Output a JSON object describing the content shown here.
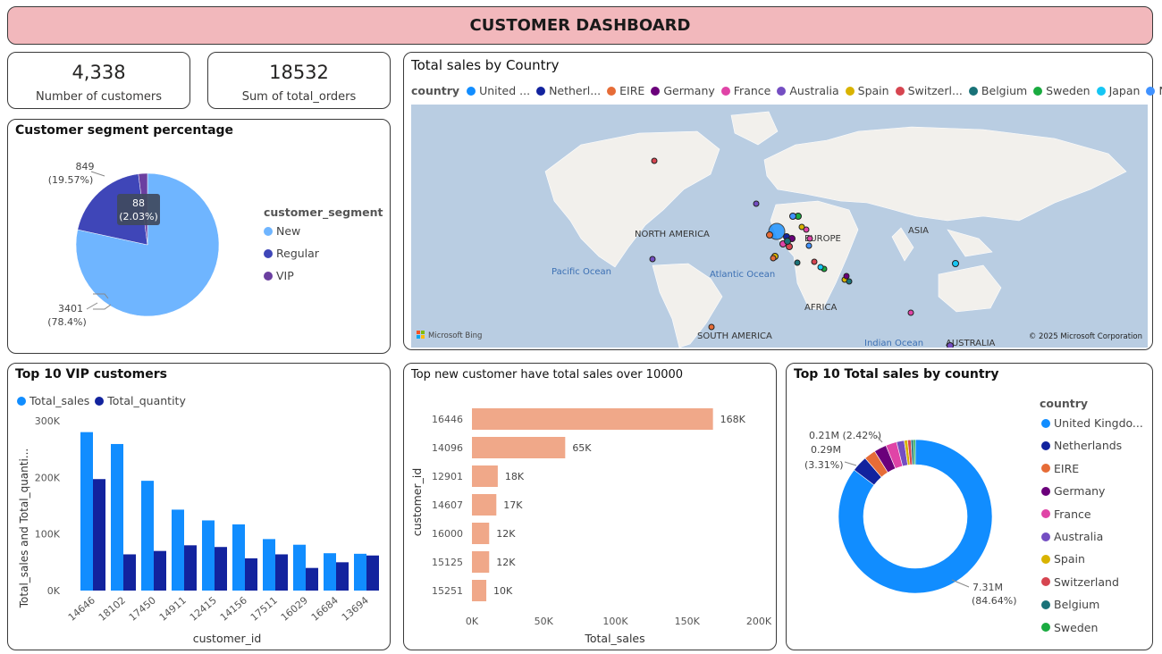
{
  "header": {
    "title": "CUSTOMER DASHBOARD"
  },
  "kpis": {
    "customers": {
      "value": "4,338",
      "label": "Number of customers"
    },
    "orders": {
      "value": "18532",
      "label": "Sum of total_orders"
    }
  },
  "segment_chart": {
    "title": "Customer segment percentage",
    "legend_title": "customer_segment",
    "items": [
      {
        "name": "New",
        "value": 3401,
        "pct": "(78.4%)",
        "color": "#6fb5ff"
      },
      {
        "name": "Regular",
        "value": 849,
        "pct": "(19.57%)",
        "color": "#3f46b8"
      },
      {
        "name": "VIP",
        "value": 88,
        "pct": "(2.03%)",
        "color": "#6b3fa0"
      }
    ],
    "labels": {
      "new_value": "3401",
      "new_pct": "(78.4%)",
      "reg_value": "849",
      "reg_pct": "(19.57%)",
      "vip_value": "88",
      "vip_pct": "(2.03%)"
    }
  },
  "map_card": {
    "title": "Total sales by Country",
    "legend_title": "country",
    "legend": [
      {
        "name": "United ...",
        "color": "#118dff"
      },
      {
        "name": "Netherl...",
        "color": "#12239e"
      },
      {
        "name": "EIRE",
        "color": "#e66c37"
      },
      {
        "name": "Germany",
        "color": "#6b007b"
      },
      {
        "name": "France",
        "color": "#e044a7"
      },
      {
        "name": "Australia",
        "color": "#744ec2"
      },
      {
        "name": "Spain",
        "color": "#d9b300"
      },
      {
        "name": "Switzerl...",
        "color": "#d64550"
      },
      {
        "name": "Belgium",
        "color": "#197278"
      },
      {
        "name": "Sweden",
        "color": "#1aab40"
      },
      {
        "name": "Japan",
        "color": "#15c6f4"
      },
      {
        "name": "Norway",
        "color": "#4092ff"
      }
    ],
    "labels": {
      "north_america": "NORTH AMERICA",
      "europe": "EUROPE",
      "asia": "ASIA",
      "africa": "AFRICA",
      "south_america": "SOUTH AMERICA",
      "australia": "AUSTRALIA",
      "pacific": "Pacific Ocean",
      "atlantic": "Atlantic Ocean",
      "indian": "Indian Ocean"
    },
    "bing": "Microsoft Bing",
    "copyright": "© 2025 Microsoft Corporation"
  },
  "vip_chart": {
    "title": "Top 10 VIP customers",
    "legend": [
      {
        "name": "Total_sales",
        "color": "#118dff"
      },
      {
        "name": "Total_quantity",
        "color": "#12239e"
      }
    ],
    "y_label": "Total_sales and Total_quanti...",
    "x_label": "customer_id"
  },
  "new_chart": {
    "title": "Top new customer have total sales over 10000",
    "x_label": "Total_sales",
    "y_label": "customer_id"
  },
  "donut_card": {
    "title": "Top 10 Total sales by country",
    "legend_title": "country",
    "legend": [
      {
        "name": "United Kingdo...",
        "color": "#118dff"
      },
      {
        "name": "Netherlands",
        "color": "#12239e"
      },
      {
        "name": "EIRE",
        "color": "#e66c37"
      },
      {
        "name": "Germany",
        "color": "#6b007b"
      },
      {
        "name": "France",
        "color": "#e044a7"
      },
      {
        "name": "Australia",
        "color": "#744ec2"
      },
      {
        "name": "Spain",
        "color": "#d9b300"
      },
      {
        "name": "Switzerland",
        "color": "#d64550"
      },
      {
        "name": "Belgium",
        "color": "#197278"
      },
      {
        "name": "Sweden",
        "color": "#1aab40"
      }
    ],
    "labels": {
      "eire": "0.21M (2.42%)",
      "neth_value": "0.29M",
      "neth_pct": "(3.31%)",
      "uk_value": "7.31M",
      "uk_pct": "(84.64%)"
    }
  },
  "chart_data": [
    {
      "type": "pie",
      "title": "Customer segment percentage",
      "categories": [
        "New",
        "Regular",
        "VIP"
      ],
      "values": [
        3401,
        849,
        88
      ],
      "legend_title": "customer_segment",
      "legend_position": "right"
    },
    {
      "type": "bar",
      "title": "Top 10 VIP customers",
      "categories": [
        "14646",
        "18102",
        "17450",
        "14911",
        "12415",
        "14156",
        "17511",
        "16029",
        "16684",
        "13694"
      ],
      "series": [
        {
          "name": "Total_sales",
          "values": [
            280000,
            259000,
            194000,
            143000,
            124000,
            117000,
            91000,
            81000,
            66000,
            65000
          ]
        },
        {
          "name": "Total_quantity",
          "values": [
            197000,
            64000,
            70000,
            80000,
            77000,
            57000,
            64000,
            40000,
            50000,
            62000
          ]
        }
      ],
      "xlabel": "customer_id",
      "ylabel": "Total_sales and Total_quanti...",
      "yticks": [
        "0K",
        "100K",
        "200K",
        "300K"
      ],
      "ylim": [
        0,
        300000
      ],
      "legend_position": "top-left"
    },
    {
      "type": "bar",
      "orientation": "horizontal",
      "title": "Top new customer have total sales over 10000",
      "categories": [
        "16446",
        "14096",
        "12901",
        "14607",
        "16000",
        "15125",
        "15251"
      ],
      "values": [
        168000,
        65000,
        18000,
        17000,
        12000,
        12000,
        10000
      ],
      "data_labels": [
        "168K",
        "65K",
        "18K",
        "17K",
        "12K",
        "12K",
        "10K"
      ],
      "xlabel": "Total_sales",
      "ylabel": "customer_id",
      "xticks": [
        "0K",
        "50K",
        "100K",
        "150K",
        "200K"
      ],
      "xlim": [
        0,
        200000
      ]
    },
    {
      "type": "pie",
      "subtype": "donut",
      "title": "Top 10 Total sales by country",
      "categories": [
        "United Kingdo...",
        "Netherlands",
        "EIRE",
        "Germany",
        "France",
        "Australia",
        "Spain",
        "Switzerland",
        "Belgium",
        "Sweden"
      ],
      "values": [
        84.64,
        3.31,
        2.42,
        2.6,
        2.3,
        1.6,
        0.7,
        0.7,
        0.5,
        0.4
      ],
      "unit": "%",
      "legend_title": "country",
      "legend_position": "right"
    }
  ]
}
